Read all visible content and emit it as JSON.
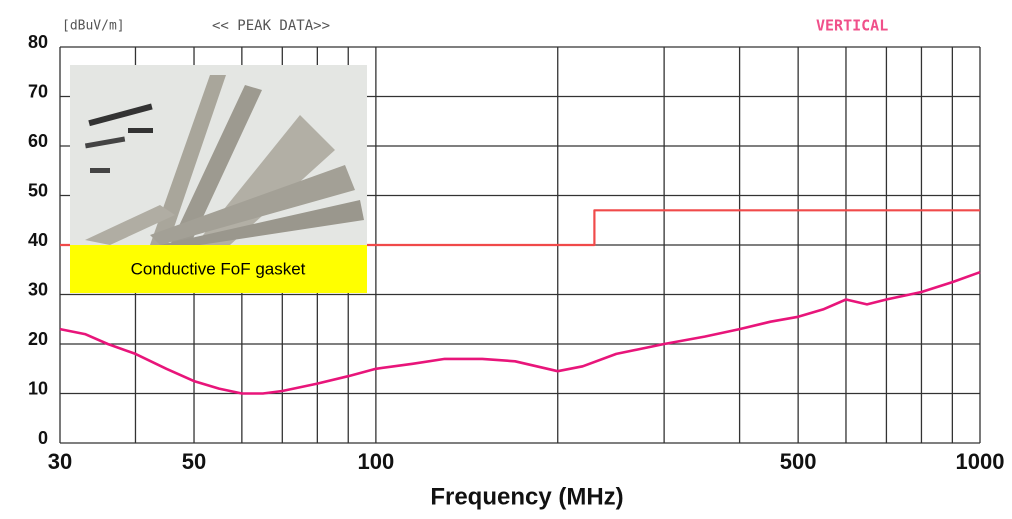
{
  "chart_data": {
    "type": "line",
    "unit_label": "[dBuV/m]",
    "subtitle": "<< PEAK DATA>>",
    "polarization": "VERTICAL",
    "x_label": "Frequency (MHz)",
    "annotation": "Conductive FoF gasket",
    "x_log": true,
    "grid": true,
    "xlim": [
      30,
      1000
    ],
    "ylim": [
      0,
      80
    ],
    "xticks": [
      30,
      50,
      100,
      500,
      1000
    ],
    "x_grid": [
      30,
      40,
      50,
      60,
      70,
      80,
      90,
      100,
      200,
      300,
      400,
      500,
      600,
      700,
      800,
      900,
      1000
    ],
    "yticks": [
      0,
      10,
      20,
      30,
      40,
      50,
      60,
      70,
      80
    ],
    "series": [
      {
        "color": "#f04a4a",
        "x": [
          30,
          230,
          230,
          1000
        ],
        "values": [
          40,
          40,
          47,
          47
        ]
      },
      {
        "color": "#e8157a",
        "x": [
          30,
          33,
          36,
          40,
          45,
          50,
          55,
          60,
          65,
          70,
          80,
          90,
          100,
          115,
          130,
          150,
          170,
          200,
          220,
          250,
          300,
          350,
          400,
          450,
          500,
          550,
          600,
          650,
          700,
          800,
          900,
          1000
        ],
        "values": [
          23,
          22,
          20,
          18,
          15,
          12.5,
          11,
          10,
          10,
          10.5,
          12,
          13.5,
          15,
          16,
          17,
          17,
          16.5,
          14.5,
          15.5,
          18,
          20,
          21.5,
          23,
          24.5,
          25.5,
          27,
          29,
          28,
          29,
          30.5,
          32.5,
          34.5
        ]
      }
    ]
  }
}
